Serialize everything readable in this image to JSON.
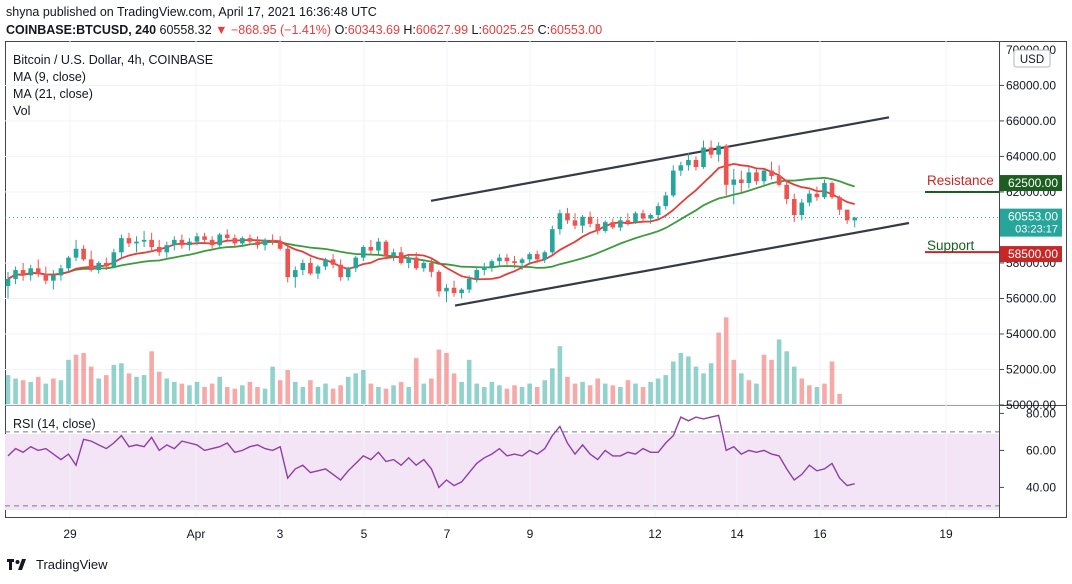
{
  "header": {
    "published": "shyna published on TradingView.com, April 17, 2021 16:36:48 UTC",
    "symbol": "COINBASE:BTCUSD, 240",
    "price": "60558.32",
    "change": "−868.95 (−1.41%)",
    "o_label": "O:",
    "o_val": "60343.69",
    "h_label": "H:",
    "h_val": "60627.99",
    "l_label": "L:",
    "l_val": "60025.25",
    "c_label": "C:",
    "c_val": "60553.00"
  },
  "legend": {
    "title": "Bitcoin / U.S. Dollar, 4h, COINBASE",
    "ma9": "MA (9, close)",
    "ma21": "MA (21, close)",
    "vol": "Vol",
    "rsi": "RSI (14, close)"
  },
  "currency": "USD",
  "annotations": {
    "resistance": "Resistance",
    "support": "Support"
  },
  "colors": {
    "up": "#26a69a",
    "down": "#ef5350",
    "ma9": "#e0403a",
    "ma21": "#3d9a3d",
    "rsi": "#8e3fa5",
    "resistance": "#1b5e20",
    "support": "#c62828"
  },
  "chart_data": {
    "type": "candlestick",
    "title": "Bitcoin / U.S. Dollar, 4h, COINBASE",
    "ylim": [
      50000,
      70500
    ],
    "yticks": [
      "68000.00",
      "66000.00",
      "64000.00",
      "62000.00",
      "58000.00",
      "56000.00",
      "54000.00",
      "52000.00",
      "50000.00"
    ],
    "top_tick": "70000.00",
    "xticks": [
      "29",
      "Apr",
      "3",
      "5",
      "7",
      "9",
      "12",
      "14",
      "16",
      "19"
    ],
    "price_labels": [
      {
        "text": "62500.00",
        "value": 62500,
        "color": "#1b5e20"
      },
      {
        "text": "60553.00",
        "value": 60553,
        "color": "#26a69a",
        "sub": "03:23:17"
      },
      {
        "text": "58500.00",
        "value": 58500,
        "color": "#c62828"
      }
    ],
    "last_close": 60553,
    "channel": {
      "upper": [
        [
          431,
          61500
        ],
        [
          889,
          66200
        ]
      ],
      "lower": [
        [
          455,
          55600
        ],
        [
          909,
          60250
        ]
      ]
    },
    "candles": [
      [
        56700,
        57500,
        56000,
        57100
      ],
      [
        57100,
        57800,
        56800,
        57600
      ],
      [
        57600,
        58000,
        57000,
        57300
      ],
      [
        57300,
        57900,
        57000,
        57700
      ],
      [
        57700,
        58200,
        57200,
        57400
      ],
      [
        57400,
        57800,
        56800,
        57000
      ],
      [
        57000,
        57600,
        56500,
        57300
      ],
      [
        57300,
        57900,
        57000,
        57700
      ],
      [
        57700,
        58400,
        57500,
        58300
      ],
      [
        58300,
        59300,
        58100,
        58800
      ],
      [
        58800,
        59000,
        58100,
        58200
      ],
      [
        58200,
        58700,
        57500,
        57600
      ],
      [
        57600,
        58100,
        57400,
        58000
      ],
      [
        58000,
        58300,
        57600,
        57800
      ],
      [
        57800,
        58800,
        57700,
        58600
      ],
      [
        58600,
        59600,
        58300,
        59400
      ],
      [
        59400,
        59700,
        58900,
        59100
      ],
      [
        59100,
        59500,
        58600,
        59200
      ],
      [
        59200,
        59800,
        58900,
        59300
      ],
      [
        59300,
        59700,
        58600,
        58900
      ],
      [
        58900,
        59300,
        58400,
        58600
      ],
      [
        58600,
        59200,
        58300,
        59000
      ],
      [
        59000,
        59500,
        58700,
        59300
      ],
      [
        59300,
        59600,
        58800,
        59000
      ],
      [
        59000,
        59400,
        58700,
        59200
      ],
      [
        59200,
        59700,
        59000,
        59500
      ],
      [
        59500,
        59700,
        59100,
        59300
      ],
      [
        59300,
        59500,
        58800,
        59000
      ],
      [
        59000,
        59700,
        58800,
        59600
      ],
      [
        59600,
        59900,
        59300,
        59400
      ],
      [
        59400,
        59600,
        58900,
        59100
      ],
      [
        59100,
        59500,
        58900,
        59400
      ],
      [
        59400,
        59600,
        59000,
        59200
      ],
      [
        59200,
        59500,
        58800,
        59000
      ],
      [
        59000,
        59400,
        58700,
        59300
      ],
      [
        59300,
        59600,
        59000,
        59200
      ],
      [
        59200,
        59500,
        58700,
        58800
      ],
      [
        58800,
        59000,
        56900,
        57200
      ],
      [
        57200,
        57800,
        56600,
        57600
      ],
      [
        57600,
        58200,
        57300,
        58000
      ],
      [
        58000,
        58300,
        57300,
        57400
      ],
      [
        57400,
        57900,
        57100,
        57800
      ],
      [
        57800,
        58300,
        57600,
        58200
      ],
      [
        58200,
        58500,
        57700,
        57900
      ],
      [
        57900,
        58200,
        57000,
        57200
      ],
      [
        57200,
        57800,
        57000,
        57700
      ],
      [
        57700,
        58400,
        57500,
        58300
      ],
      [
        58300,
        59000,
        58100,
        58900
      ],
      [
        58900,
        59300,
        58500,
        58700
      ],
      [
        58700,
        59400,
        58500,
        59200
      ],
      [
        59200,
        59300,
        58200,
        58400
      ],
      [
        58400,
        58800,
        58100,
        58600
      ],
      [
        58600,
        58900,
        57900,
        58000
      ],
      [
        58000,
        58400,
        57700,
        58300
      ],
      [
        58300,
        58600,
        57600,
        57700
      ],
      [
        57700,
        58200,
        57500,
        58000
      ],
      [
        58000,
        58300,
        57200,
        57500
      ],
      [
        57500,
        57600,
        56100,
        56400
      ],
      [
        56400,
        56800,
        55800,
        56600
      ],
      [
        56600,
        57000,
        56100,
        56300
      ],
      [
        56300,
        56600,
        56000,
        56500
      ],
      [
        56500,
        57300,
        56300,
        57100
      ],
      [
        57100,
        57800,
        56900,
        57600
      ],
      [
        57600,
        58000,
        57300,
        57800
      ],
      [
        57800,
        58200,
        57500,
        58100
      ],
      [
        58100,
        58500,
        57800,
        58300
      ],
      [
        58300,
        58500,
        57900,
        58100
      ],
      [
        58100,
        58400,
        57700,
        58000
      ],
      [
        58000,
        58300,
        57600,
        58200
      ],
      [
        58200,
        58600,
        57900,
        58500
      ],
      [
        58500,
        58700,
        58000,
        58200
      ],
      [
        58200,
        58700,
        58000,
        58600
      ],
      [
        58600,
        60100,
        58500,
        59900
      ],
      [
        59900,
        61000,
        59600,
        60800
      ],
      [
        60800,
        61100,
        60200,
        60400
      ],
      [
        60400,
        60800,
        59900,
        60100
      ],
      [
        60100,
        60700,
        59700,
        60600
      ],
      [
        60600,
        60900,
        60000,
        60200
      ],
      [
        60200,
        60500,
        59600,
        59800
      ],
      [
        59800,
        60400,
        59700,
        60300
      ],
      [
        60300,
        60500,
        59900,
        60000
      ],
      [
        60000,
        60600,
        59800,
        60400
      ],
      [
        60400,
        60800,
        60100,
        60300
      ],
      [
        60300,
        60900,
        60200,
        60800
      ],
      [
        60800,
        61000,
        60300,
        60500
      ],
      [
        60500,
        60800,
        60200,
        60700
      ],
      [
        60700,
        61400,
        60500,
        61200
      ],
      [
        61200,
        62000,
        61000,
        61800
      ],
      [
        61800,
        63500,
        61700,
        63200
      ],
      [
        63200,
        63700,
        62900,
        63500
      ],
      [
        63500,
        64200,
        63200,
        63800
      ],
      [
        63800,
        64000,
        63200,
        63400
      ],
      [
        63400,
        64900,
        63300,
        64500
      ],
      [
        64500,
        64900,
        63900,
        64100
      ],
      [
        64100,
        64800,
        63700,
        64600
      ],
      [
        64600,
        64700,
        61800,
        62400
      ],
      [
        62400,
        63300,
        61300,
        62700
      ],
      [
        62700,
        63200,
        62000,
        62500
      ],
      [
        62500,
        63400,
        62200,
        63100
      ],
      [
        63100,
        63300,
        62400,
        62600
      ],
      [
        62600,
        63300,
        62400,
        63200
      ],
      [
        63200,
        63700,
        62700,
        62900
      ],
      [
        62900,
        63500,
        62300,
        62400
      ],
      [
        62400,
        62700,
        61300,
        61600
      ],
      [
        61600,
        61900,
        60300,
        60700
      ],
      [
        60700,
        61600,
        60400,
        61400
      ],
      [
        61400,
        62100,
        61200,
        61900
      ],
      [
        61900,
        62300,
        61500,
        61700
      ],
      [
        61700,
        62700,
        61600,
        62500
      ],
      [
        62500,
        62600,
        61600,
        61700
      ],
      [
        61700,
        61800,
        60700,
        61000
      ],
      [
        61000,
        61000,
        60200,
        60400
      ],
      [
        60400,
        60600,
        60000,
        60553
      ]
    ],
    "volume": [
      {
        "up": 1,
        "v": 1.7
      },
      {
        "up": 1,
        "v": 1.5
      },
      {
        "up": 0,
        "v": 1.4
      },
      {
        "up": 1,
        "v": 1.3
      },
      {
        "up": 0,
        "v": 1.6
      },
      {
        "up": 1,
        "v": 1.2
      },
      {
        "up": 0,
        "v": 1.5
      },
      {
        "up": 1,
        "v": 1.4
      },
      {
        "up": 1,
        "v": 2.6
      },
      {
        "up": 0,
        "v": 2.9
      },
      {
        "up": 0,
        "v": 3.0
      },
      {
        "up": 0,
        "v": 2.2
      },
      {
        "up": 1,
        "v": 1.5
      },
      {
        "up": 0,
        "v": 1.7
      },
      {
        "up": 1,
        "v": 2.3
      },
      {
        "up": 1,
        "v": 2.4
      },
      {
        "up": 0,
        "v": 1.8
      },
      {
        "up": 1,
        "v": 1.6
      },
      {
        "up": 1,
        "v": 1.7
      },
      {
        "up": 0,
        "v": 3.1
      },
      {
        "up": 0,
        "v": 1.9
      },
      {
        "up": 1,
        "v": 1.5
      },
      {
        "up": 1,
        "v": 1.3
      },
      {
        "up": 0,
        "v": 1.2
      },
      {
        "up": 1,
        "v": 1.1
      },
      {
        "up": 1,
        "v": 1.3
      },
      {
        "up": 0,
        "v": 1.0
      },
      {
        "up": 0,
        "v": 1.2
      },
      {
        "up": 1,
        "v": 1.6
      },
      {
        "up": 0,
        "v": 1.0
      },
      {
        "up": 0,
        "v": 0.9
      },
      {
        "up": 1,
        "v": 1.1
      },
      {
        "up": 0,
        "v": 1.3
      },
      {
        "up": 0,
        "v": 1.0
      },
      {
        "up": 1,
        "v": 0.9
      },
      {
        "up": 1,
        "v": 2.2
      },
      {
        "up": 0,
        "v": 1.4
      },
      {
        "up": 0,
        "v": 2.0
      },
      {
        "up": 1,
        "v": 1.3
      },
      {
        "up": 1,
        "v": 1.0
      },
      {
        "up": 0,
        "v": 1.4
      },
      {
        "up": 1,
        "v": 1.0
      },
      {
        "up": 1,
        "v": 1.2
      },
      {
        "up": 0,
        "v": 0.9
      },
      {
        "up": 0,
        "v": 1.1
      },
      {
        "up": 1,
        "v": 1.6
      },
      {
        "up": 1,
        "v": 1.8
      },
      {
        "up": 1,
        "v": 2.0
      },
      {
        "up": 0,
        "v": 1.2
      },
      {
        "up": 1,
        "v": 1.0
      },
      {
        "up": 0,
        "v": 0.9
      },
      {
        "up": 1,
        "v": 1.1
      },
      {
        "up": 0,
        "v": 1.3
      },
      {
        "up": 1,
        "v": 1.0
      },
      {
        "up": 0,
        "v": 2.7
      },
      {
        "up": 1,
        "v": 1.2
      },
      {
        "up": 0,
        "v": 1.5
      },
      {
        "up": 0,
        "v": 3.2
      },
      {
        "up": 0,
        "v": 3.0
      },
      {
        "up": 0,
        "v": 1.8
      },
      {
        "up": 1,
        "v": 1.3
      },
      {
        "up": 1,
        "v": 2.6
      },
      {
        "up": 1,
        "v": 1.2
      },
      {
        "up": 1,
        "v": 1.0
      },
      {
        "up": 1,
        "v": 1.3
      },
      {
        "up": 1,
        "v": 1.1
      },
      {
        "up": 0,
        "v": 0.9
      },
      {
        "up": 0,
        "v": 1.1
      },
      {
        "up": 1,
        "v": 1.0
      },
      {
        "up": 1,
        "v": 1.2
      },
      {
        "up": 0,
        "v": 1.0
      },
      {
        "up": 1,
        "v": 1.4
      },
      {
        "up": 1,
        "v": 2.1
      },
      {
        "up": 1,
        "v": 3.4
      },
      {
        "up": 0,
        "v": 1.6
      },
      {
        "up": 0,
        "v": 1.2
      },
      {
        "up": 1,
        "v": 1.3
      },
      {
        "up": 0,
        "v": 1.1
      },
      {
        "up": 0,
        "v": 1.5
      },
      {
        "up": 1,
        "v": 1.2
      },
      {
        "up": 0,
        "v": 1.1
      },
      {
        "up": 1,
        "v": 1.0
      },
      {
        "up": 0,
        "v": 1.4
      },
      {
        "up": 1,
        "v": 1.2
      },
      {
        "up": 0,
        "v": 1.0
      },
      {
        "up": 1,
        "v": 1.3
      },
      {
        "up": 1,
        "v": 1.5
      },
      {
        "up": 1,
        "v": 1.7
      },
      {
        "up": 1,
        "v": 2.5
      },
      {
        "up": 1,
        "v": 3.0
      },
      {
        "up": 1,
        "v": 2.8
      },
      {
        "up": 1,
        "v": 2.2
      },
      {
        "up": 1,
        "v": 1.8
      },
      {
        "up": 1,
        "v": 2.4
      },
      {
        "up": 0,
        "v": 4.2
      },
      {
        "up": 0,
        "v": 5.1
      },
      {
        "up": 0,
        "v": 2.6
      },
      {
        "up": 1,
        "v": 1.8
      },
      {
        "up": 0,
        "v": 1.4
      },
      {
        "up": 1,
        "v": 1.2
      },
      {
        "up": 0,
        "v": 2.9
      },
      {
        "up": 0,
        "v": 2.6
      },
      {
        "up": 1,
        "v": 3.8
      },
      {
        "up": 1,
        "v": 3.1
      },
      {
        "up": 1,
        "v": 2.2
      },
      {
        "up": 0,
        "v": 1.5
      },
      {
        "up": 0,
        "v": 1.1
      },
      {
        "up": 1,
        "v": 1.0
      },
      {
        "up": 0,
        "v": 1.2
      },
      {
        "up": 0,
        "v": 2.5
      },
      {
        "up": 0,
        "v": 0.6
      }
    ],
    "rsi": {
      "ylim": [
        24,
        84
      ],
      "yticks": [
        "80.00",
        "60.00",
        "40.00"
      ],
      "levels": [
        70,
        30
      ],
      "values": [
        57,
        61,
        59,
        62,
        60,
        61,
        58,
        55,
        58,
        52,
        66,
        65,
        63,
        61,
        64,
        68,
        62,
        63,
        62,
        67,
        60,
        63,
        61,
        65,
        64,
        63,
        60,
        61,
        62,
        64,
        59,
        60,
        62,
        63,
        61,
        60,
        62,
        45,
        50,
        52,
        48,
        49,
        50,
        47,
        44,
        49,
        53,
        57,
        55,
        59,
        54,
        55,
        52,
        56,
        52,
        55,
        50,
        40,
        44,
        41,
        43,
        48,
        53,
        56,
        58,
        61,
        57,
        58,
        57,
        60,
        58,
        61,
        68,
        73,
        64,
        58,
        63,
        58,
        55,
        60,
        57,
        57,
        59,
        58,
        61,
        59,
        59,
        64,
        68,
        78,
        76,
        78,
        77,
        78,
        79,
        60,
        62,
        58,
        60,
        59,
        60,
        58,
        57,
        50,
        44,
        47,
        52,
        49,
        50,
        53,
        45,
        41,
        42
      ]
    }
  },
  "brand": {
    "name": "TradingView"
  }
}
